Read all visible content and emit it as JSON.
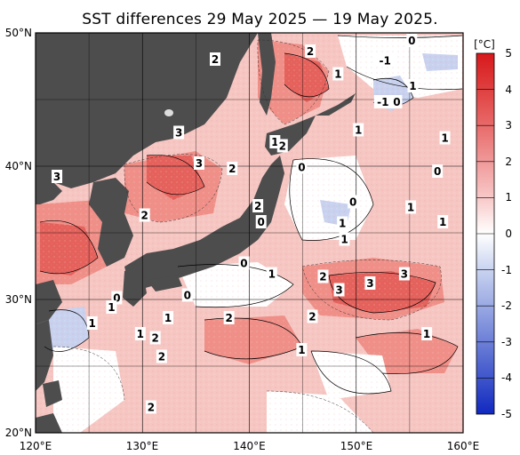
{
  "title": "SST differences 29 May 2025 — 19 May 2025.",
  "unit": "[°C]",
  "lon_ticks": [
    "120°E",
    "130°E",
    "140°E",
    "150°E",
    "160°E"
  ],
  "lat_ticks": [
    "50°N",
    "40°N",
    "30°N",
    "20°N"
  ],
  "colorbar": {
    "labels": [
      "5",
      "4",
      "3",
      "2",
      "1",
      "0",
      "-1",
      "-2",
      "-3",
      "-4",
      "-5"
    ],
    "colors": [
      "#d7191c",
      "#e04040",
      "#e86a6a",
      "#f09999",
      "#f8c8c8",
      "#ffffff",
      "#c9d3f0",
      "#9aa9e3",
      "#6c7fd7",
      "#3f55cb",
      "#1028c0"
    ]
  },
  "colors": {
    "land": "#4d4d4d",
    "ocean_base": "#f6c6c2",
    "warm_strong": "#e5615c",
    "warm_mid": "#ef8f88",
    "neutral": "#ffffff",
    "cool": "#c8d2ef"
  },
  "contour_labels": [
    {
      "t": "2",
      "lon": 136.8,
      "lat": 48.0
    },
    {
      "t": "2",
      "lon": 145.7,
      "lat": 48.6
    },
    {
      "t": "0",
      "lon": 155.2,
      "lat": 49.4
    },
    {
      "t": "-1",
      "lon": 152.7,
      "lat": 47.9
    },
    {
      "t": "1",
      "lon": 148.3,
      "lat": 46.9
    },
    {
      "t": "1",
      "lon": 155.3,
      "lat": 46.0
    },
    {
      "t": "-1",
      "lon": 152.5,
      "lat": 44.8
    },
    {
      "t": "0",
      "lon": 153.8,
      "lat": 44.8
    },
    {
      "t": "3",
      "lon": 133.4,
      "lat": 42.5
    },
    {
      "t": "1",
      "lon": 142.4,
      "lat": 41.8
    },
    {
      "t": "2",
      "lon": 143.1,
      "lat": 41.5
    },
    {
      "t": "1",
      "lon": 150.2,
      "lat": 42.7
    },
    {
      "t": "1",
      "lon": 158.3,
      "lat": 42.1
    },
    {
      "t": "3",
      "lon": 135.3,
      "lat": 40.2
    },
    {
      "t": "2",
      "lon": 138.4,
      "lat": 39.8
    },
    {
      "t": "0",
      "lon": 144.9,
      "lat": 39.9
    },
    {
      "t": "0",
      "lon": 157.6,
      "lat": 39.6
    },
    {
      "t": "3",
      "lon": 122.0,
      "lat": 39.2
    },
    {
      "t": "2",
      "lon": 140.8,
      "lat": 37.0
    },
    {
      "t": "0",
      "lon": 149.7,
      "lat": 37.3
    },
    {
      "t": "1",
      "lon": 155.1,
      "lat": 36.9
    },
    {
      "t": "2",
      "lon": 130.2,
      "lat": 36.3
    },
    {
      "t": "0",
      "lon": 141.1,
      "lat": 35.8
    },
    {
      "t": "1",
      "lon": 148.7,
      "lat": 35.7
    },
    {
      "t": "1",
      "lon": 158.1,
      "lat": 35.8
    },
    {
      "t": "1",
      "lon": 148.9,
      "lat": 34.5
    },
    {
      "t": "0",
      "lon": 139.5,
      "lat": 32.7
    },
    {
      "t": "1",
      "lon": 142.1,
      "lat": 31.9
    },
    {
      "t": "2",
      "lon": 146.9,
      "lat": 31.7
    },
    {
      "t": "3",
      "lon": 154.5,
      "lat": 31.9
    },
    {
      "t": "3",
      "lon": 151.3,
      "lat": 31.2
    },
    {
      "t": "3",
      "lon": 148.4,
      "lat": 30.7
    },
    {
      "t": "0",
      "lon": 134.2,
      "lat": 30.3
    },
    {
      "t": "0",
      "lon": 127.6,
      "lat": 30.1
    },
    {
      "t": "1",
      "lon": 127.1,
      "lat": 29.4
    },
    {
      "t": "1",
      "lon": 132.4,
      "lat": 28.6
    },
    {
      "t": "2",
      "lon": 138.1,
      "lat": 28.6
    },
    {
      "t": "2",
      "lon": 145.9,
      "lat": 28.7
    },
    {
      "t": "1",
      "lon": 125.3,
      "lat": 28.2
    },
    {
      "t": "1",
      "lon": 129.8,
      "lat": 27.4
    },
    {
      "t": "2",
      "lon": 131.2,
      "lat": 27.1
    },
    {
      "t": "1",
      "lon": 156.6,
      "lat": 27.4
    },
    {
      "t": "1",
      "lon": 144.9,
      "lat": 26.2
    },
    {
      "t": "2",
      "lon": 131.8,
      "lat": 25.7
    },
    {
      "t": "2",
      "lon": 130.8,
      "lat": 21.9
    }
  ]
}
